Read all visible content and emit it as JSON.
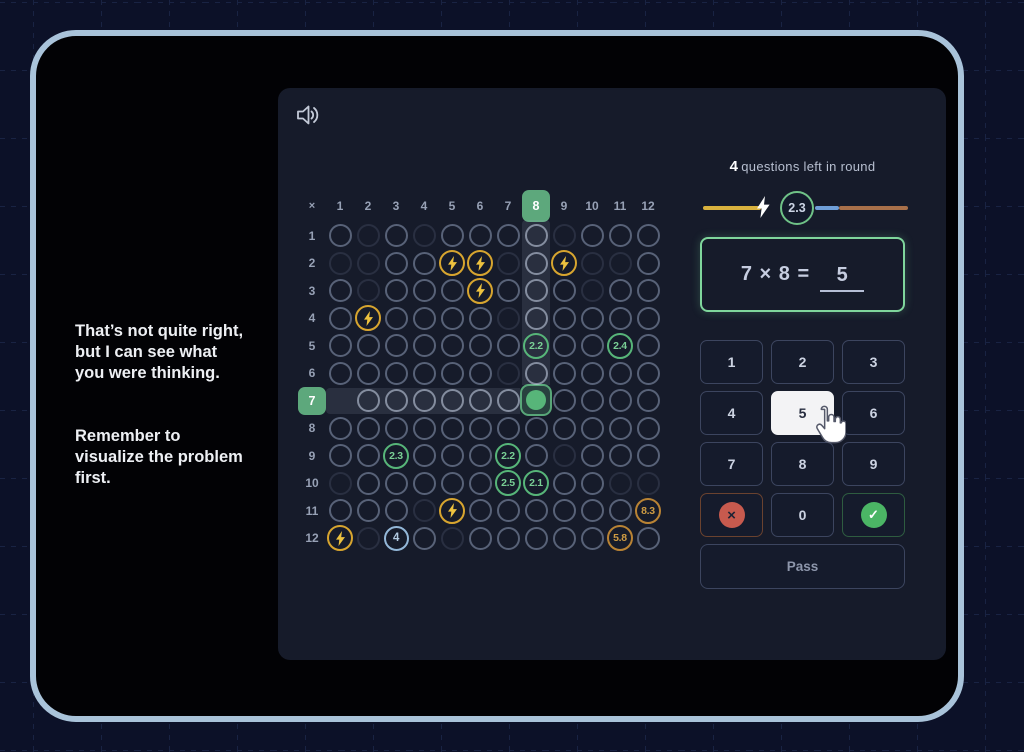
{
  "coach": {
    "p1": "That’s not quite right,\nbut I can see what\nyou were thinking.",
    "p2": "Remember to\nvisualize the problem\nfirst."
  },
  "panel": {
    "status": {
      "count": "4",
      "label": "questions left in round"
    },
    "progress": {
      "badge": "2.3"
    },
    "question": {
      "expression": "7 × 8 =",
      "answer": "5"
    },
    "numpad": {
      "keys": [
        {
          "label": "1"
        },
        {
          "label": "2"
        },
        {
          "label": "3"
        },
        {
          "label": "4"
        },
        {
          "label": "5",
          "state": "hover"
        },
        {
          "label": "6"
        },
        {
          "label": "7"
        },
        {
          "label": "8"
        },
        {
          "label": "9"
        },
        {
          "icon": "cross",
          "style": "danger"
        },
        {
          "label": "0"
        },
        {
          "icon": "check",
          "style": "success"
        }
      ],
      "pass_label": "Pass"
    },
    "grid": {
      "corner": "×",
      "columns": [
        "1",
        "2",
        "3",
        "4",
        "5",
        "6",
        "7",
        "8",
        "9",
        "10",
        "11",
        "12"
      ],
      "rows": [
        "1",
        "2",
        "3",
        "4",
        "5",
        "6",
        "7",
        "8",
        "9",
        "10",
        "11",
        "12"
      ],
      "highlight_column": 8,
      "highlight_row": 7,
      "special_cells": {
        "1,2": "dim",
        "1,4": "dim",
        "1,9": "dim",
        "2,1": "dim",
        "2,2": "dim",
        "2,5": "bolt",
        "2,6": "bolt",
        "2,7": "dim",
        "2,9": "bolt",
        "2,10": "dim",
        "2,11": "dim",
        "3,2": "dim",
        "3,6": "bolt",
        "3,10": "dim",
        "4,2": "bolt",
        "4,7": "dim",
        "5,8": {
          "v": "2.2",
          "c": "green"
        },
        "5,11": {
          "v": "2.4",
          "c": "green"
        },
        "6,7": "dim",
        "7,1": "none",
        "7,8": "filled",
        "9,3": {
          "v": "2.3",
          "c": "green"
        },
        "9,7": {
          "v": "2.2",
          "c": "green"
        },
        "9,9": "dim",
        "10,1": "dim",
        "10,7": {
          "v": "2.5",
          "c": "green"
        },
        "10,8": {
          "v": "2.1",
          "c": "green"
        },
        "10,11": "dim",
        "10,12": "dim",
        "11,4": "dim",
        "11,5": "bolt",
        "11,12": {
          "v": "8.3",
          "c": "orange"
        },
        "12,1": "bolt",
        "12,2": "dim",
        "12,3": {
          "v": "4",
          "c": "blue"
        },
        "12,5": "dim",
        "12,11": {
          "v": "5.8",
          "c": "orange"
        }
      }
    }
  },
  "icons": {
    "check_glyph": "✓",
    "cross_glyph": "×"
  },
  "colors": {
    "frame_border": "#a9c3da",
    "tile_green": "#5da87c",
    "accent_green": "#57b579",
    "accent_yellow": "#d9b23e",
    "accent_yellow_ring": "#d7a52f",
    "accent_blue": "#6f9fd8",
    "accent_orange": "#a8704a",
    "accent_orange_ring": "#b98334",
    "qbox_border": "#7fd69c",
    "key_hover": "#f3f3f5",
    "danger": "#c75a4e",
    "success": "#4bb565"
  }
}
